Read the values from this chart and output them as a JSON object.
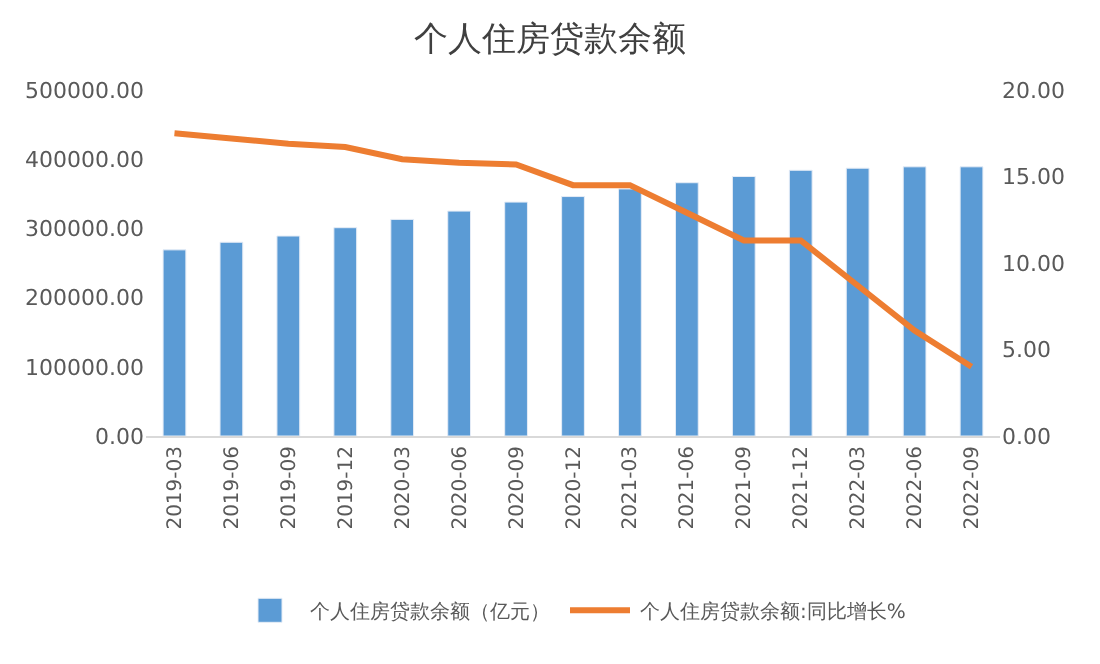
{
  "chart_data": {
    "type": "bar",
    "title": "个人住房贷款余额",
    "categories": [
      "2019-03",
      "2019-06",
      "2019-09",
      "2019-12",
      "2020-03",
      "2020-06",
      "2020-09",
      "2020-12",
      "2021-03",
      "2021-06",
      "2021-09",
      "2021-12",
      "2022-03",
      "2022-06",
      "2022-09"
    ],
    "series": [
      {
        "name": "个人住房贷款余额（亿元）",
        "color": "#5b9bd5",
        "values": [
          269000,
          280000,
          289000,
          301000,
          313000,
          325000,
          338000,
          346000,
          357000,
          366000,
          375000,
          384000,
          387000,
          389000,
          389000
        ]
      },
      {
        "name": "个人住房贷款余额:同比增长%",
        "type": "line",
        "axis": "y2",
        "color": "#ed7d31",
        "values": [
          17.5,
          17.2,
          16.9,
          16.7,
          16.0,
          15.8,
          15.7,
          14.5,
          14.5,
          12.9,
          11.3,
          11.3,
          8.7,
          6.1,
          4.0
        ]
      }
    ],
    "ylim": [
      0,
      500000
    ],
    "yticks": [
      {
        "value": 0,
        "label": "0.00"
      },
      {
        "value": 100000,
        "label": "100000.00"
      },
      {
        "value": 200000,
        "label": "200000.00"
      },
      {
        "value": 300000,
        "label": "300000.00"
      },
      {
        "value": 400000,
        "label": "400000.00"
      },
      {
        "value": 500000,
        "label": "500000.00"
      }
    ],
    "y2lim": [
      0,
      20
    ],
    "y2ticks": [
      {
        "value": 0,
        "label": "0.00"
      },
      {
        "value": 5,
        "label": "5.00"
      },
      {
        "value": 10,
        "label": "10.00"
      },
      {
        "value": 15,
        "label": "15.00"
      },
      {
        "value": 20,
        "label": "20.00"
      }
    ],
    "legend": "bottom",
    "marker": "none",
    "line_style": "solid"
  }
}
